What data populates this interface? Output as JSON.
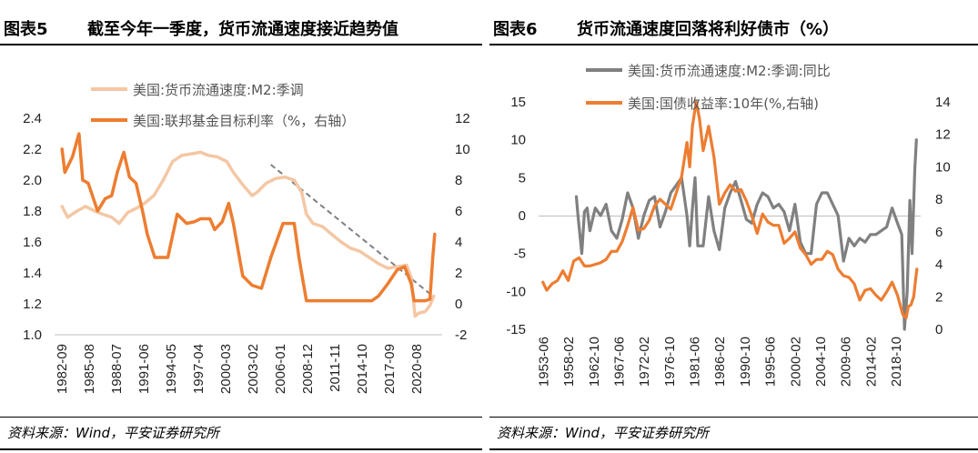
{
  "figures": [
    {
      "number": "图表5",
      "title": "截至今年一季度，货币流通速度接近趋势值",
      "source": "资料来源：Wind，平安证券研究所"
    },
    {
      "number": "图表6",
      "title": "货币流通速度回落将利好债市（%）",
      "source": "资料来源：Wind，平安证券研究所"
    }
  ],
  "chart_data": [
    {
      "type": "line",
      "title": "截至今年一季度，货币流通速度接近趋势值",
      "x_tick_labels": [
        "1982-09",
        "1985-08",
        "1988-07",
        "1991-06",
        "1994-05",
        "1997-04",
        "2000-03",
        "2003-02",
        "2006-01",
        "2008-12",
        "2011-11",
        "2014-10",
        "2017-09",
        "2020-08"
      ],
      "y_left": {
        "ticks": [
          "2.4",
          "2.2",
          "2.0",
          "1.8",
          "1.6",
          "1.4",
          "1.2",
          "1.0"
        ],
        "lim": [
          1.0,
          2.4
        ]
      },
      "y_right": {
        "ticks": [
          "12",
          "10",
          "8",
          "6",
          "4",
          "2",
          "0",
          "-2"
        ],
        "lim": [
          -2,
          12
        ]
      },
      "trend_line": {
        "style": "dashed",
        "color": "#7f7f7f",
        "from": [
          2005.0,
          2.1
        ],
        "to": [
          2022.3,
          1.25
        ]
      },
      "series": [
        {
          "name": "美国:货币流通速度:M2:季调",
          "axis": "left",
          "color": "#f4c7a4",
          "width": 3.5,
          "points": [
            [
              1982.7,
              1.83
            ],
            [
              1983.3,
              1.76
            ],
            [
              1984.3,
              1.8
            ],
            [
              1985.2,
              1.83
            ],
            [
              1986.2,
              1.8
            ],
            [
              1987.0,
              1.78
            ],
            [
              1988.0,
              1.76
            ],
            [
              1988.8,
              1.72
            ],
            [
              1989.7,
              1.79
            ],
            [
              1990.7,
              1.82
            ],
            [
              1991.5,
              1.85
            ],
            [
              1992.5,
              1.9
            ],
            [
              1993.5,
              2.0
            ],
            [
              1994.5,
              2.12
            ],
            [
              1995.5,
              2.16
            ],
            [
              1996.5,
              2.17
            ],
            [
              1997.5,
              2.18
            ],
            [
              1998.3,
              2.16
            ],
            [
              1999.3,
              2.15
            ],
            [
              2000.3,
              2.12
            ],
            [
              2001.0,
              2.05
            ],
            [
              2002.0,
              1.97
            ],
            [
              2003.0,
              1.9
            ],
            [
              2003.5,
              1.92
            ],
            [
              2004.5,
              1.98
            ],
            [
              2005.5,
              2.01
            ],
            [
              2006.5,
              2.02
            ],
            [
              2007.5,
              2.0
            ],
            [
              2008.3,
              1.92
            ],
            [
              2008.8,
              1.78
            ],
            [
              2009.5,
              1.72
            ],
            [
              2010.5,
              1.7
            ],
            [
              2011.5,
              1.65
            ],
            [
              2012.5,
              1.6
            ],
            [
              2013.5,
              1.56
            ],
            [
              2014.5,
              1.54
            ],
            [
              2015.5,
              1.5
            ],
            [
              2016.5,
              1.46
            ],
            [
              2017.5,
              1.43
            ],
            [
              2018.5,
              1.44
            ],
            [
              2019.5,
              1.45
            ],
            [
              2020.0,
              1.37
            ],
            [
              2020.4,
              1.12
            ],
            [
              2020.8,
              1.14
            ],
            [
              2021.5,
              1.15
            ],
            [
              2022.0,
              1.19
            ],
            [
              2022.4,
              1.25
            ]
          ]
        },
        {
          "name": "美国:联邦基金目标利率（%，右轴）",
          "axis": "right",
          "color": "#ed7d31",
          "width": 3.5,
          "points": [
            [
              1982.7,
              10.0
            ],
            [
              1983.0,
              8.5
            ],
            [
              1983.8,
              9.5
            ],
            [
              1984.5,
              11.0
            ],
            [
              1984.9,
              8.0
            ],
            [
              1985.5,
              7.8
            ],
            [
              1986.5,
              6.0
            ],
            [
              1987.3,
              6.8
            ],
            [
              1988.0,
              7.0
            ],
            [
              1988.6,
              8.5
            ],
            [
              1989.3,
              9.8
            ],
            [
              1989.9,
              8.2
            ],
            [
              1990.6,
              7.8
            ],
            [
              1991.3,
              6.0
            ],
            [
              1991.8,
              4.5
            ],
            [
              1992.6,
              3.0
            ],
            [
              1993.5,
              3.0
            ],
            [
              1994.0,
              3.0
            ],
            [
              1995.0,
              5.8
            ],
            [
              1996.0,
              5.2
            ],
            [
              1996.8,
              5.3
            ],
            [
              1997.5,
              5.5
            ],
            [
              1998.5,
              5.5
            ],
            [
              1999.0,
              4.8
            ],
            [
              1999.8,
              5.3
            ],
            [
              2000.5,
              6.5
            ],
            [
              2001.0,
              5.2
            ],
            [
              2002.0,
              1.8
            ],
            [
              2003.0,
              1.2
            ],
            [
              2004.0,
              1.0
            ],
            [
              2005.0,
              3.0
            ],
            [
              2006.3,
              5.2
            ],
            [
              2007.5,
              5.2
            ],
            [
              2008.0,
              3.0
            ],
            [
              2008.8,
              0.2
            ],
            [
              2010.0,
              0.2
            ],
            [
              2012.0,
              0.2
            ],
            [
              2014.0,
              0.2
            ],
            [
              2015.8,
              0.2
            ],
            [
              2016.5,
              0.5
            ],
            [
              2017.5,
              1.3
            ],
            [
              2018.5,
              2.2
            ],
            [
              2019.3,
              2.4
            ],
            [
              2020.0,
              1.3
            ],
            [
              2020.3,
              0.2
            ],
            [
              2021.5,
              0.2
            ],
            [
              2022.0,
              0.3
            ],
            [
              2022.3,
              3.0
            ],
            [
              2022.5,
              4.5
            ]
          ]
        }
      ]
    },
    {
      "type": "line",
      "title": "货币流通速度回落将利好债市（%）",
      "x_tick_labels": [
        "1953-06",
        "1958-02",
        "1962-10",
        "1967-06",
        "1972-02",
        "1976-10",
        "1981-06",
        "1986-02",
        "1990-10",
        "1995-06",
        "2000-02",
        "2004-10",
        "2009-06",
        "2014-02",
        "2018-10"
      ],
      "y_left": {
        "ticks": [
          "15",
          "10",
          "5",
          "0",
          "-5",
          "-10",
          "-15"
        ],
        "lim": [
          -15,
          15
        ]
      },
      "y_right": {
        "ticks": [
          "14",
          "12",
          "10",
          "8",
          "6",
          "4",
          "2",
          "0"
        ],
        "lim": [
          0,
          14
        ]
      },
      "series": [
        {
          "name": "美国:货币流通速度:M2:季调:同比",
          "axis": "left",
          "color": "#808080",
          "width": 3.2,
          "points": [
            [
              1959.5,
              2.5
            ],
            [
              1959.8,
              0.0
            ],
            [
              1960.5,
              -5.0
            ],
            [
              1961.0,
              0.5
            ],
            [
              1961.5,
              1.0
            ],
            [
              1962.0,
              -2.0
            ],
            [
              1963.0,
              1.0
            ],
            [
              1964.0,
              0.0
            ],
            [
              1965.0,
              1.5
            ],
            [
              1966.0,
              -2.0
            ],
            [
              1967.0,
              -3.0
            ],
            [
              1968.0,
              -0.5
            ],
            [
              1969.0,
              3.0
            ],
            [
              1970.0,
              1.0
            ],
            [
              1971.0,
              -3.0
            ],
            [
              1972.0,
              0.0
            ],
            [
              1973.0,
              2.0
            ],
            [
              1974.0,
              2.5
            ],
            [
              1975.0,
              -1.5
            ],
            [
              1976.0,
              0.5
            ],
            [
              1977.0,
              3.0
            ],
            [
              1978.0,
              4.0
            ],
            [
              1979.0,
              5.0
            ],
            [
              1980.0,
              0.0
            ],
            [
              1980.5,
              -4.0
            ],
            [
              1981.0,
              1.0
            ],
            [
              1981.5,
              5.0
            ],
            [
              1982.0,
              -4.0
            ],
            [
              1983.0,
              -4.0
            ],
            [
              1984.0,
              2.5
            ],
            [
              1985.0,
              -2.0
            ],
            [
              1986.0,
              -4.5
            ],
            [
              1987.0,
              1.0
            ],
            [
              1988.0,
              3.0
            ],
            [
              1989.0,
              4.5
            ],
            [
              1990.0,
              2.0
            ],
            [
              1991.0,
              -0.5
            ],
            [
              1992.0,
              -1.0
            ],
            [
              1993.0,
              1.5
            ],
            [
              1994.0,
              3.0
            ],
            [
              1995.0,
              2.5
            ],
            [
              1996.0,
              1.0
            ],
            [
              1997.0,
              1.5
            ],
            [
              1998.0,
              0.5
            ],
            [
              1999.0,
              -2.0
            ],
            [
              2000.0,
              1.5
            ],
            [
              2001.0,
              -3.5
            ],
            [
              2002.0,
              -5.0
            ],
            [
              2003.0,
              -5.0
            ],
            [
              2004.0,
              1.5
            ],
            [
              2005.0,
              3.0
            ],
            [
              2006.0,
              3.0
            ],
            [
              2007.0,
              1.5
            ],
            [
              2008.0,
              0.0
            ],
            [
              2009.0,
              -6.0
            ],
            [
              2010.0,
              -3.0
            ],
            [
              2011.0,
              -4.0
            ],
            [
              2012.0,
              -3.0
            ],
            [
              2013.0,
              -3.5
            ],
            [
              2014.0,
              -2.5
            ],
            [
              2015.0,
              -2.5
            ],
            [
              2016.0,
              -2.0
            ],
            [
              2017.0,
              -1.5
            ],
            [
              2018.0,
              1.0
            ],
            [
              2019.0,
              -1.0
            ],
            [
              2019.8,
              -2.5
            ],
            [
              2020.3,
              -15.0
            ],
            [
              2020.8,
              -10.0
            ],
            [
              2021.3,
              2.0
            ],
            [
              2021.7,
              -5.0
            ],
            [
              2022.2,
              6.0
            ],
            [
              2022.5,
              10.0
            ]
          ]
        },
        {
          "name": "美国:国债收益率:10年(%,右轴)",
          "axis": "right",
          "color": "#ed7d31",
          "width": 3.2,
          "points": [
            [
              1953.3,
              2.9
            ],
            [
              1954.0,
              2.4
            ],
            [
              1955.0,
              2.8
            ],
            [
              1956.0,
              3.0
            ],
            [
              1957.0,
              3.6
            ],
            [
              1958.0,
              3.0
            ],
            [
              1959.0,
              4.2
            ],
            [
              1960.0,
              4.4
            ],
            [
              1961.0,
              3.9
            ],
            [
              1962.0,
              3.9
            ],
            [
              1963.0,
              4.0
            ],
            [
              1964.0,
              4.1
            ],
            [
              1965.0,
              4.3
            ],
            [
              1966.0,
              4.8
            ],
            [
              1967.0,
              4.8
            ],
            [
              1968.0,
              5.4
            ],
            [
              1969.0,
              6.4
            ],
            [
              1970.0,
              7.5
            ],
            [
              1971.0,
              6.1
            ],
            [
              1972.0,
              6.2
            ],
            [
              1973.0,
              6.7
            ],
            [
              1974.0,
              7.6
            ],
            [
              1975.0,
              8.0
            ],
            [
              1976.0,
              7.7
            ],
            [
              1977.0,
              7.4
            ],
            [
              1978.0,
              8.4
            ],
            [
              1979.0,
              9.4
            ],
            [
              1980.0,
              11.5
            ],
            [
              1980.5,
              10.0
            ],
            [
              1981.0,
              12.5
            ],
            [
              1981.7,
              14.0
            ],
            [
              1982.3,
              13.0
            ],
            [
              1983.0,
              11.0
            ],
            [
              1984.0,
              12.5
            ],
            [
              1985.0,
              10.6
            ],
            [
              1986.0,
              7.7
            ],
            [
              1987.0,
              8.4
            ],
            [
              1988.0,
              8.9
            ],
            [
              1989.0,
              8.5
            ],
            [
              1990.0,
              8.6
            ],
            [
              1991.0,
              7.9
            ],
            [
              1992.0,
              7.0
            ],
            [
              1993.0,
              5.9
            ],
            [
              1994.0,
              7.1
            ],
            [
              1995.0,
              6.6
            ],
            [
              1996.0,
              6.4
            ],
            [
              1997.0,
              6.4
            ],
            [
              1998.0,
              5.3
            ],
            [
              1999.0,
              5.6
            ],
            [
              2000.0,
              6.0
            ],
            [
              2001.0,
              5.0
            ],
            [
              2002.0,
              4.6
            ],
            [
              2003.0,
              4.0
            ],
            [
              2004.0,
              4.3
            ],
            [
              2005.0,
              4.3
            ],
            [
              2006.0,
              4.8
            ],
            [
              2007.0,
              4.6
            ],
            [
              2008.0,
              3.7
            ],
            [
              2009.0,
              3.3
            ],
            [
              2010.0,
              3.2
            ],
            [
              2011.0,
              2.8
            ],
            [
              2012.0,
              1.8
            ],
            [
              2013.0,
              2.4
            ],
            [
              2014.0,
              2.5
            ],
            [
              2015.0,
              2.1
            ],
            [
              2016.0,
              1.8
            ],
            [
              2017.0,
              2.3
            ],
            [
              2018.0,
              2.9
            ],
            [
              2019.0,
              2.1
            ],
            [
              2020.0,
              0.9
            ],
            [
              2020.6,
              0.7
            ],
            [
              2021.0,
              1.4
            ],
            [
              2021.5,
              1.5
            ],
            [
              2022.0,
              2.0
            ],
            [
              2022.3,
              2.9
            ],
            [
              2022.6,
              3.7
            ]
          ]
        }
      ]
    }
  ]
}
